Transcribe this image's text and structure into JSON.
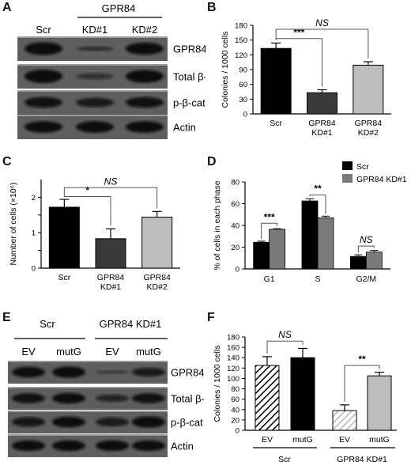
{
  "panels": {
    "A": "A",
    "B": "B",
    "C": "C",
    "D": "D",
    "E": "E",
    "F": "F"
  },
  "blotA": {
    "lanes": [
      "Scr",
      "KD#1",
      "KD#2"
    ],
    "group": "GPR84",
    "rows": [
      {
        "label": "GPR84",
        "intensity": [
          0.95,
          0.35,
          0.9
        ]
      },
      {
        "label": "Total β-cat",
        "intensity": [
          1.0,
          0.45,
          0.95
        ]
      },
      {
        "label": "p-β-cat",
        "intensity": [
          0.8,
          0.7,
          0.8
        ]
      },
      {
        "label": "Actin",
        "intensity": [
          0.85,
          0.85,
          0.85
        ]
      }
    ]
  },
  "blotE": {
    "groups": [
      "Scr",
      "GPR84 KD#1"
    ],
    "lanes": [
      "EV",
      "mutG",
      "EV",
      "mutG"
    ],
    "rows": [
      {
        "label": "GPR84",
        "intensity": [
          0.85,
          0.9,
          0.25,
          0.7
        ]
      },
      {
        "label": "Total β-cat",
        "intensity": [
          0.8,
          0.85,
          0.6,
          0.8
        ]
      },
      {
        "label": "p-β-cat",
        "intensity": [
          0.75,
          0.85,
          0.7,
          0.9
        ]
      },
      {
        "label": "Actin",
        "intensity": [
          0.85,
          0.85,
          0.85,
          0.85
        ]
      }
    ]
  },
  "chart_data": [
    {
      "panel": "B",
      "type": "bar",
      "categories": [
        "Scr",
        "GPR84\nKD#1",
        "GPR84\nKD#2"
      ],
      "values": [
        133,
        43,
        99
      ],
      "errors": [
        11,
        6,
        7
      ],
      "fills": [
        "#000000",
        "#3a3a3a",
        "#bdbdbd"
      ],
      "ylabel": "Colonies / 1000 cells",
      "ylim": [
        0,
        180
      ],
      "yticks": [
        0,
        30,
        60,
        90,
        120,
        150,
        180
      ],
      "brackets": [
        {
          "from": 0,
          "to": 1,
          "label": "***",
          "level": 153
        },
        {
          "from": 0,
          "to": 2,
          "label": "NS",
          "level": 172
        }
      ]
    },
    {
      "panel": "C",
      "type": "bar",
      "categories": [
        "Scr",
        "GPR84\nKD#1",
        "GPR84\nKD#2"
      ],
      "values": [
        1.72,
        0.83,
        1.44
      ],
      "errors": [
        0.22,
        0.28,
        0.16
      ],
      "fills": [
        "#000000",
        "#3a3a3a",
        "#bdbdbd"
      ],
      "ylabel": "Number of cells (×10⁶)",
      "ylim": [
        0,
        2.5
      ],
      "yticks": [
        0,
        0.5,
        1,
        1.5,
        2
      ],
      "ytick_labels": [
        "0",
        "",
        "1",
        "",
        "2"
      ],
      "brackets": [
        {
          "from": 0,
          "to": 1,
          "label": "*",
          "level": 2.02
        },
        {
          "from": 0,
          "to": 2,
          "label": "NS",
          "level": 2.27
        }
      ]
    },
    {
      "panel": "D",
      "type": "bar",
      "categories": [
        "G1",
        "S",
        "G2/M"
      ],
      "series": [
        {
          "name": "Scr",
          "values": [
            24.5,
            62.5,
            11.5
          ],
          "errors": [
            1,
            2,
            1.5
          ],
          "fill": "#000000"
        },
        {
          "name": "GPR84 KD#1",
          "values": [
            36.5,
            47,
            15.5
          ],
          "errors": [
            0.5,
            1.5,
            1.5
          ],
          "fill": "#7a7a7a"
        }
      ],
      "ylabel": "% of cells in each phase",
      "ylim": [
        0,
        80
      ],
      "yticks": [
        0,
        20,
        40,
        60,
        80
      ],
      "brackets": [
        {
          "cat": 0,
          "label": "***",
          "level": 42
        },
        {
          "cat": 1,
          "label": "**",
          "level": 68
        },
        {
          "cat": 2,
          "label": "NS",
          "level": 21
        }
      ],
      "legend": "top-right"
    },
    {
      "panel": "F",
      "type": "bar",
      "categories": [
        "EV",
        "mutG",
        "EV",
        "mutG"
      ],
      "groups": [
        "Scr",
        "GPR84 KD#1"
      ],
      "values": [
        125,
        140,
        38,
        105
      ],
      "errors": [
        17,
        18,
        11,
        7
      ],
      "fills": [
        "hatch-dark",
        "#000000",
        "hatch-light",
        "#bdbdbd"
      ],
      "ylabel": "Colonies / 1000 cells",
      "ylim": [
        0,
        180
      ],
      "yticks": [
        0,
        20,
        40,
        60,
        80,
        100,
        120,
        140,
        160,
        180
      ],
      "brackets": [
        {
          "from": 0,
          "to": 1,
          "label": "NS",
          "level": 172
        },
        {
          "from": 2,
          "to": 3,
          "label": "**",
          "level": 125
        }
      ]
    }
  ]
}
